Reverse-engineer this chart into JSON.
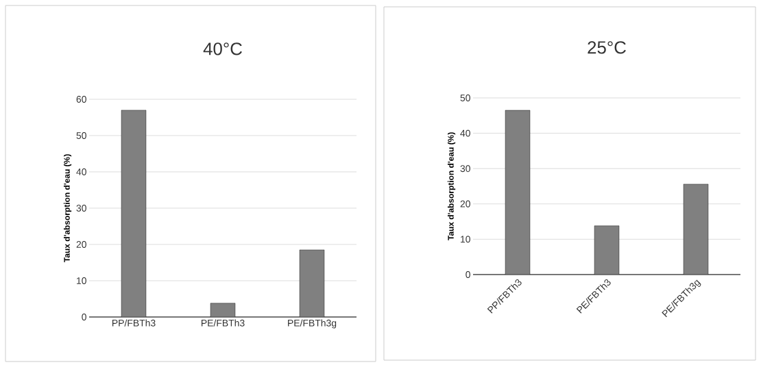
{
  "chart_data": [
    {
      "type": "bar",
      "title": "40°C",
      "ylabel": "Taux d'absorption d'eau (%)",
      "categories": [
        "PP/FBTh3",
        "PE/FBTh3",
        "PE/FBTh3g"
      ],
      "values": [
        57,
        3.8,
        18.5
      ],
      "color": "#808080",
      "ylim": [
        0,
        60
      ],
      "yticks": [
        0,
        10,
        20,
        30,
        40,
        50,
        60
      ],
      "grid": "y"
    },
    {
      "type": "bar",
      "title": "25°C",
      "ylabel": "Taux d'absorption d'eau (%)",
      "categories": [
        "PP/FBTh3",
        "PE/FBTh3",
        "PE/FBTh3g"
      ],
      "values": [
        46.5,
        13.8,
        25.6
      ],
      "color": "#808080",
      "ylim": [
        0,
        50
      ],
      "yticks": [
        0,
        10,
        20,
        30,
        40,
        50
      ],
      "grid": "y"
    }
  ]
}
